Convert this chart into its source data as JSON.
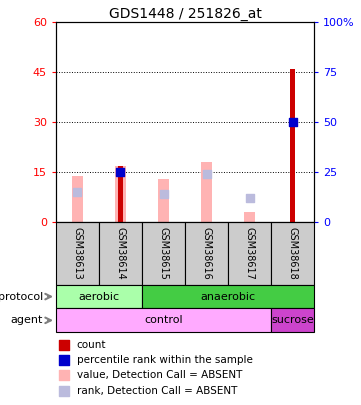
{
  "title": "GDS1448 / 251826_at",
  "samples": [
    "GSM38613",
    "GSM38614",
    "GSM38615",
    "GSM38616",
    "GSM38617",
    "GSM38618"
  ],
  "count_values": [
    0,
    17,
    0,
    0,
    0,
    46
  ],
  "count_color": "#cc0000",
  "rank_values": [
    0,
    25,
    0,
    0,
    0,
    50
  ],
  "rank_color": "#0000cc",
  "absent_value": [
    14,
    17,
    13,
    18,
    3,
    0
  ],
  "absent_value_color": "#ffb3b3",
  "absent_rank": [
    15,
    0,
    14,
    24,
    12,
    0
  ],
  "absent_rank_color": "#bbbbdd",
  "ylim_left": [
    0,
    60
  ],
  "ylim_right": [
    0,
    100
  ],
  "yticks_left": [
    0,
    15,
    30,
    45,
    60
  ],
  "yticks_right": [
    0,
    25,
    50,
    75,
    100
  ],
  "ytick_labels_left": [
    "0",
    "15",
    "30",
    "45",
    "60"
  ],
  "ytick_labels_right": [
    "0",
    "25",
    "50",
    "75",
    "100%"
  ],
  "protocol": [
    [
      "aerobic",
      2
    ],
    [
      "anaerobic",
      4
    ]
  ],
  "protocol_colors": [
    "#aaffaa",
    "#44cc44"
  ],
  "agent": [
    [
      "control",
      5
    ],
    [
      "sucrose",
      1
    ]
  ],
  "agent_colors": [
    "#ffaaff",
    "#cc44cc"
  ],
  "legend_items": [
    {
      "label": "count",
      "color": "#cc0000",
      "marker": "s"
    },
    {
      "label": "percentile rank within the sample",
      "color": "#0000cc",
      "marker": "s"
    },
    {
      "label": "value, Detection Call = ABSENT",
      "color": "#ffb3b3",
      "marker": "s"
    },
    {
      "label": "rank, Detection Call = ABSENT",
      "color": "#bbbbdd",
      "marker": "s"
    }
  ],
  "bar_bg_color": "#cccccc",
  "bar_border_color": "#000000",
  "dot_size": 40
}
